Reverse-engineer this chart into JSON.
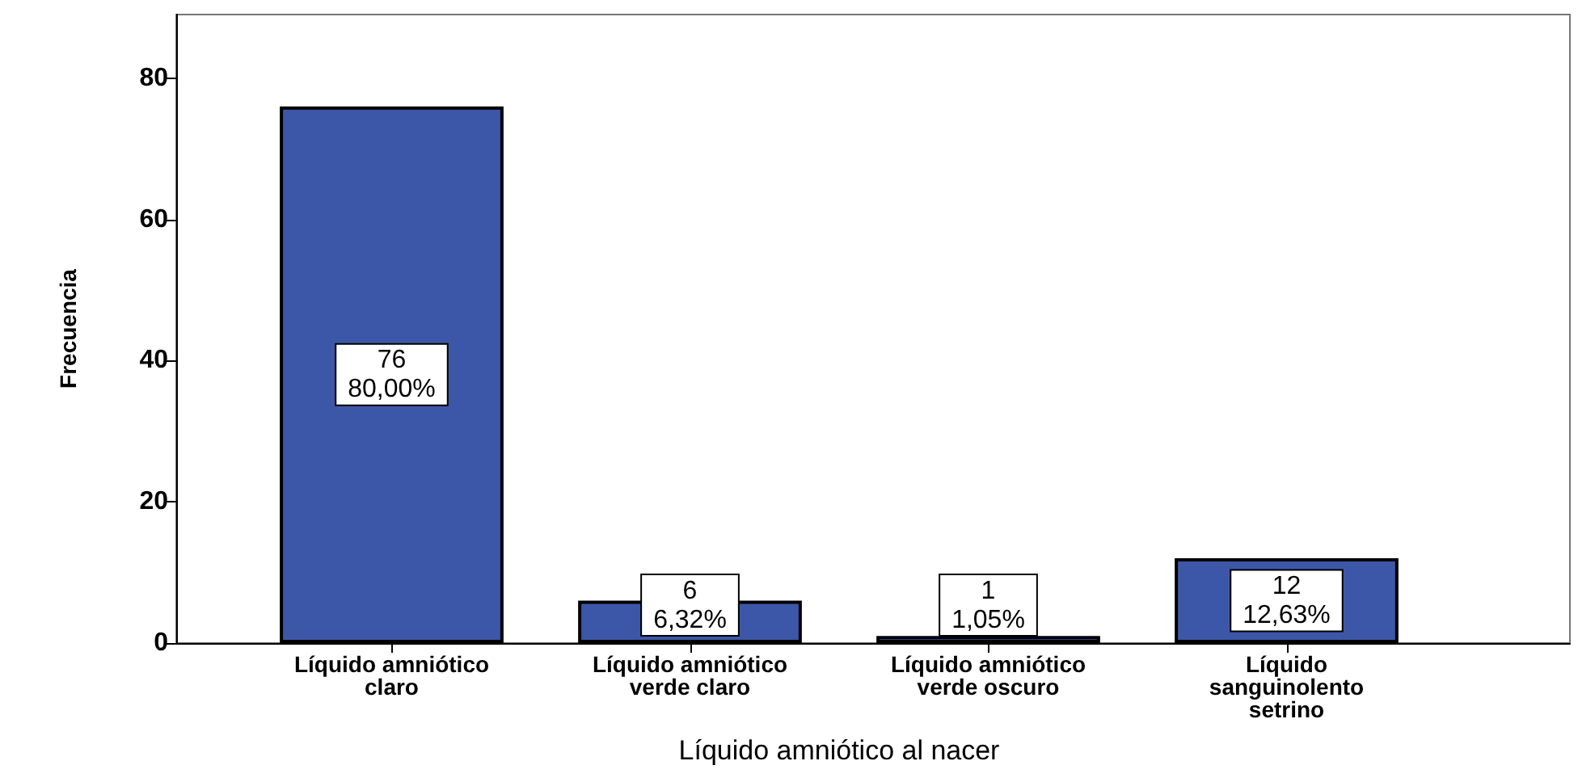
{
  "chart_data": {
    "type": "bar",
    "xlabel": "Líquido amniótico al nacer",
    "ylabel": "Frecuencia",
    "categories": [
      "Líquido amniótico\nclaro",
      "Líquido amniótico\nverde claro",
      "Líquido amniótico\nverde oscuro",
      "Líquido\nsanguinolento\nsetrino"
    ],
    "values": [
      76,
      6,
      1,
      12
    ],
    "color": "#3d57a8",
    "value_labels": [
      "76\n80,00%",
      "6\n6,32%",
      "1\n1,05%",
      "12\n12,63%"
    ],
    "ylim": [
      0,
      89
    ],
    "yticks": [
      0,
      20,
      40,
      60,
      80
    ],
    "grid": false
  }
}
